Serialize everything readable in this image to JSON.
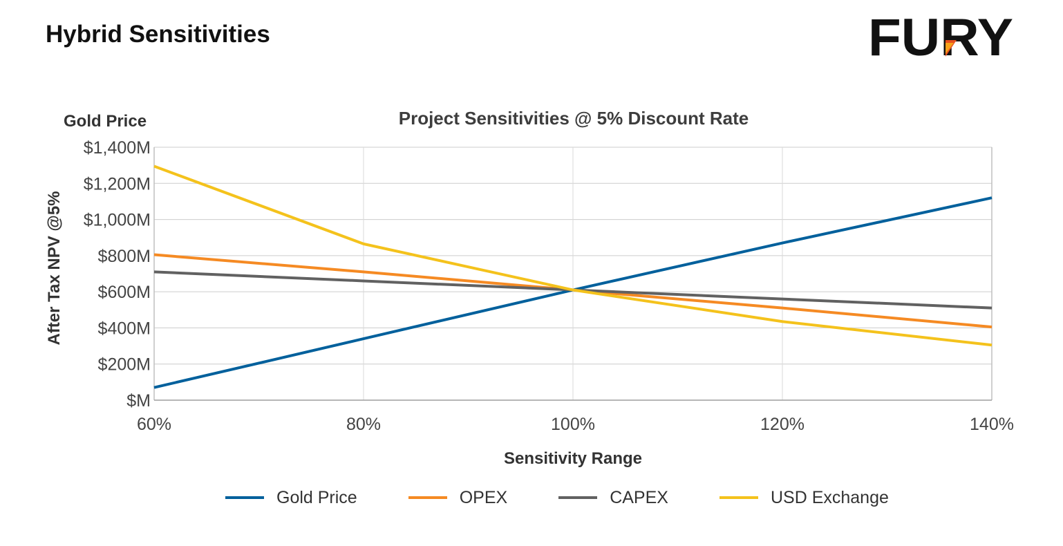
{
  "header": {
    "title": "Hybrid Sensitivities",
    "logo_text": "FURY"
  },
  "chart_data": {
    "type": "line",
    "title": "Project Sensitivities @ 5% Discount Rate",
    "corner_label": "Gold Price",
    "xlabel": "Sensitivity Range",
    "ylabel": "After Tax NPV @5%",
    "categories": [
      "60%",
      "80%",
      "100%",
      "120%",
      "140%"
    ],
    "x": [
      60,
      80,
      100,
      120,
      140
    ],
    "xlim": [
      60,
      140
    ],
    "ylim": [
      0,
      1400
    ],
    "yticks": [
      0,
      200,
      400,
      600,
      800,
      1000,
      1200,
      1400
    ],
    "ytick_labels": [
      "$M",
      "$200M",
      "$400M",
      "$600M",
      "$800M",
      "$1,000M",
      "$1,200M",
      "$1,400M"
    ],
    "grid": true,
    "legend_position": "bottom",
    "series": [
      {
        "name": "Gold Price",
        "color": "#00609c",
        "values": [
          70,
          340,
          610,
          870,
          1120
        ]
      },
      {
        "name": "OPEX",
        "color": "#f58a23",
        "values": [
          805,
          710,
          610,
          510,
          405
        ]
      },
      {
        "name": "CAPEX",
        "color": "#616161",
        "values": [
          710,
          660,
          610,
          560,
          510
        ]
      },
      {
        "name": "USD Exchange",
        "color": "#f4c21c",
        "values": [
          1295,
          865,
          610,
          435,
          305
        ]
      }
    ]
  },
  "colors": {
    "logo_dark": "#111111",
    "logo_accent": "#e8501e",
    "logo_accent_light": "#f7a21b"
  }
}
